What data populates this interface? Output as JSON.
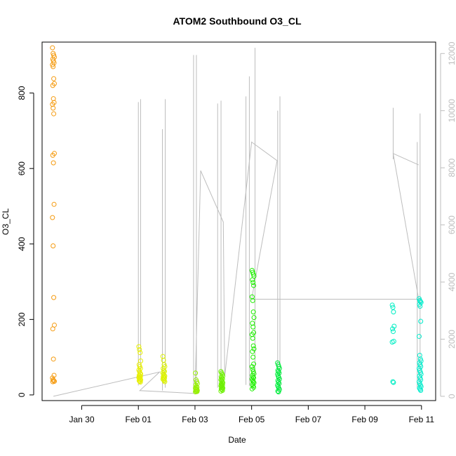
{
  "chart_data": {
    "type": "scatter",
    "title": "ATOM2 Southbound O3_CL",
    "xlabel": "Date",
    "ylabel": "O3_CL",
    "x_tick_labels": [
      "Jan 30",
      "Feb 01",
      "Feb 03",
      "Feb 05",
      "Feb 07",
      "Feb 09",
      "Feb 11"
    ],
    "x_tick_days": [
      30,
      32,
      34,
      36,
      38,
      40,
      42
    ],
    "xlim_days": [
      28.6,
      42.5
    ],
    "ylim": [
      -15,
      935
    ],
    "y_ticks": [
      0,
      200,
      400,
      600,
      800
    ],
    "y_right_ticks": [
      0,
      2000,
      4000,
      6000,
      8000,
      10000,
      12000
    ],
    "y_right_lim": [
      -150,
      12400
    ],
    "grid": false,
    "legend": "none",
    "colors": {
      "line": "#bdbdbd",
      "tick_right": "#bdbdbd",
      "axis": "#000000",
      "scatter_gradient": [
        "#ff8c00",
        "#eeee00",
        "#00ee44",
        "#00eebb"
      ]
    },
    "series": [
      {
        "day": 29.0,
        "color": "#f59b10",
        "values": [
          920,
          905,
          900,
          895,
          890,
          885,
          880,
          875,
          870,
          838,
          825,
          820,
          785,
          775,
          770,
          760,
          745,
          640,
          635,
          615,
          505,
          470,
          395,
          258,
          185,
          175,
          95,
          52,
          45,
          40,
          38,
          36,
          35
        ]
      },
      {
        "day": 32.05,
        "color": "#e8f000",
        "values": [
          128,
          120,
          112,
          90,
          80,
          75,
          70,
          66,
          62,
          58,
          55,
          52,
          50,
          48,
          46,
          44,
          42,
          40,
          38,
          36,
          34
        ]
      },
      {
        "day": 32.9,
        "color": "#dcf200",
        "values": [
          102,
          92,
          80,
          75,
          70,
          65,
          62,
          58,
          55,
          52,
          50,
          48,
          46,
          44,
          42,
          40,
          38,
          35
        ]
      },
      {
        "day": 34.05,
        "color": "#96f000",
        "values": [
          58,
          40,
          35,
          30,
          26,
          22,
          20,
          18,
          16,
          14,
          12,
          11,
          10,
          9,
          8
        ]
      },
      {
        "day": 34.95,
        "color": "#6cf000",
        "values": [
          62,
          58,
          55,
          50,
          48,
          45,
          42,
          40,
          38,
          35,
          32,
          30,
          28,
          26,
          24,
          22,
          20,
          18,
          16,
          14,
          12,
          10
        ]
      },
      {
        "day": 36.05,
        "color": "#1ef000",
        "values": [
          330,
          325,
          320,
          315,
          305,
          298,
          290,
          260,
          250,
          220,
          205,
          190,
          180,
          165,
          160,
          150,
          130,
          122,
          115,
          100,
          82,
          75,
          68,
          62,
          56,
          52,
          48,
          45,
          42,
          38,
          35,
          32,
          28,
          24,
          20,
          16
        ]
      },
      {
        "day": 36.95,
        "color": "#00ec3c",
        "values": [
          85,
          80,
          75,
          70,
          65,
          62,
          58,
          55,
          50,
          46,
          42,
          38,
          34,
          30,
          26,
          22,
          18,
          14,
          10,
          8
        ]
      },
      {
        "day": 41.0,
        "color": "#00eec4",
        "values": [
          238,
          232,
          220,
          182,
          175,
          168,
          142,
          140,
          35,
          33
        ]
      },
      {
        "day": 41.95,
        "color": "#00eccc",
        "values": [
          255,
          250,
          248,
          245,
          240,
          235,
          195,
          155,
          105,
          95,
          90,
          85,
          80,
          75,
          70,
          65,
          60,
          55,
          50,
          45,
          40,
          35,
          30,
          26,
          22,
          18,
          15,
          12
        ]
      }
    ],
    "secondary_series": {
      "name": "",
      "axis": "right",
      "segments": [
        {
          "day": 29.0,
          "low": 0,
          "high": 0
        },
        {
          "day": 32.0,
          "low": 380,
          "high": 10300
        },
        {
          "day": 32.08,
          "low": 450,
          "high": 10400
        },
        {
          "day": 32.85,
          "low": 200,
          "high": 9350
        },
        {
          "day": 32.95,
          "low": 300,
          "high": 10400
        },
        {
          "day": 33.95,
          "low": 100,
          "high": 11950
        },
        {
          "day": 34.05,
          "low": 150,
          "high": 11950
        },
        {
          "day": 34.8,
          "low": 300,
          "high": 10250
        },
        {
          "day": 34.92,
          "low": 250,
          "high": 10350
        },
        {
          "day": 35.8,
          "low": 400,
          "high": 10500
        },
        {
          "day": 35.92,
          "low": 350,
          "high": 11200
        },
        {
          "day": 36.12,
          "low": 700,
          "high": 12200
        },
        {
          "day": 36.92,
          "low": 1000,
          "high": 10000
        },
        {
          "day": 37.0,
          "low": 200,
          "high": 10500
        },
        {
          "day": 41.0,
          "low": 8300,
          "high": 10100
        },
        {
          "day": 41.85,
          "low": 300,
          "high": 8900
        },
        {
          "day": 41.95,
          "low": 400,
          "high": 9900
        }
      ],
      "connector": [
        [
          29.0,
          0
        ],
        [
          32.75,
          850
        ],
        [
          32.05,
          200
        ],
        [
          34.0,
          100
        ],
        [
          34.2,
          7900
        ],
        [
          35.0,
          6100
        ],
        [
          35.05,
          700
        ],
        [
          36.0,
          8900
        ],
        [
          36.9,
          8250
        ],
        [
          36.0,
          3400
        ],
        [
          41.9,
          3400
        ],
        [
          41.0,
          8500
        ],
        [
          41.9,
          8100
        ]
      ]
    }
  }
}
